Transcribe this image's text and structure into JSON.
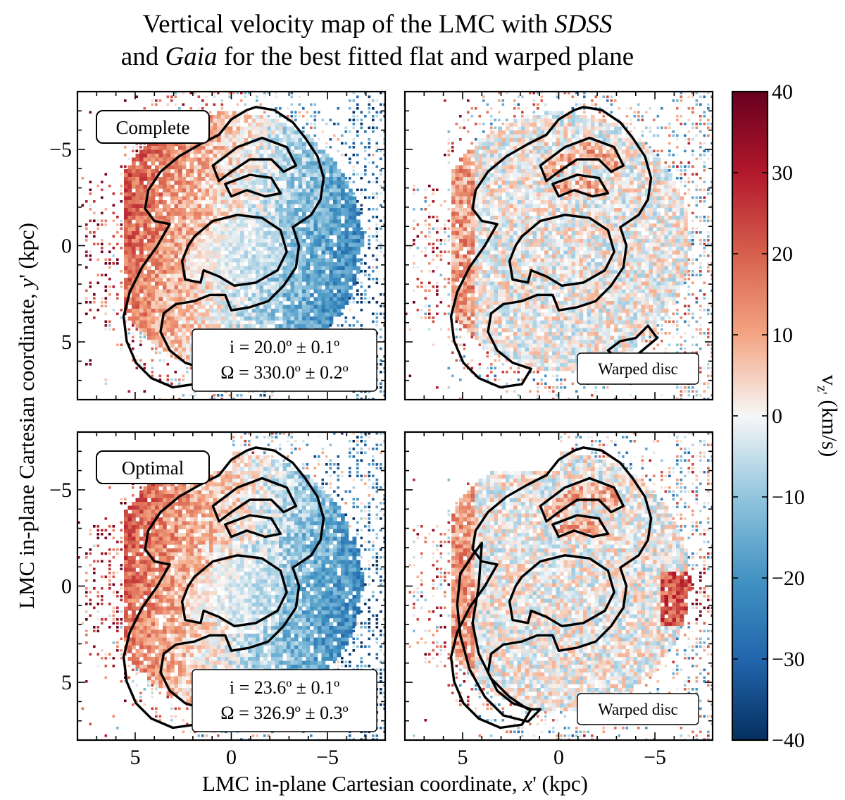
{
  "chart_data": {
    "type": "heatmap",
    "title_lines": [
      [
        "Vertical velocity map of the LMC with ",
        {
          "i": "SDSS"
        }
      ],
      [
        "and ",
        {
          "i": "Gaia"
        },
        " for the best fitted flat and warped plane"
      ]
    ],
    "xlabel": "LMC in-plane Cartesian coordinate, x' (kpc)",
    "ylabel": "LMC in-plane Cartesian coordinate, y' (kpc)",
    "colorbar": {
      "label": "vz' (km/s)",
      "range": [
        -40,
        40
      ],
      "ticks": [
        "40",
        "30",
        "20",
        "10",
        "0",
        "−10",
        "−20",
        "−30",
        "−40"
      ],
      "colormap": "RdBu_r"
    },
    "x_range": [
      8,
      -8
    ],
    "y_range": [
      8,
      -8
    ],
    "x_ticks": [
      "5",
      "0",
      "−5"
    ],
    "y_ticks": [
      "−5",
      "0",
      "5"
    ],
    "panels": [
      {
        "row": "Complete",
        "model": "flat",
        "label": "Complete",
        "fit": [
          "i = 20.0º ± 0.1º",
          "Ω = 330.0º ± 0.2º"
        ],
        "dominant_left": "positive (red)",
        "dominant_right": "negative (blue)"
      },
      {
        "row": "Complete",
        "model": "warped",
        "label": "Warped disc",
        "dominant": "mixed near zero"
      },
      {
        "row": "Optimal",
        "model": "flat",
        "label": "Optimal",
        "fit": [
          "i = 23.6º ± 0.1º",
          "Ω = 326.9º ± 0.3º"
        ],
        "dominant_left": "positive (red)",
        "dominant_right": "negative (blue)"
      },
      {
        "row": "Optimal",
        "model": "warped",
        "label": "Warped disc",
        "dominant": "mixed near zero"
      }
    ]
  }
}
